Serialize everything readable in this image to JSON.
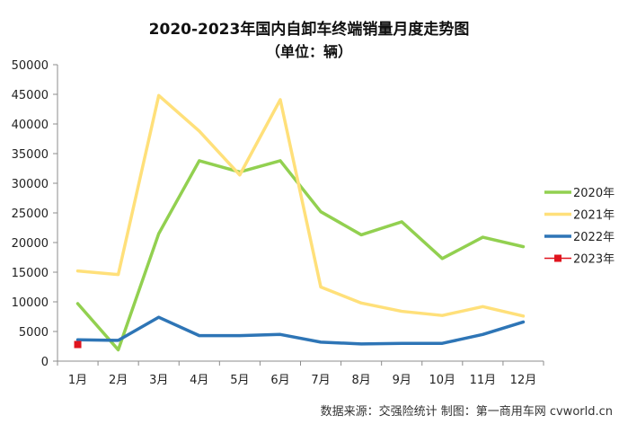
{
  "chart_data": {
    "type": "line",
    "title": "2020-2023年国内自卸车终端销量月度走势图",
    "subtitle": "（单位：辆）",
    "categories": [
      "1月",
      "2月",
      "3月",
      "4月",
      "5月",
      "6月",
      "7月",
      "8月",
      "9月",
      "10月",
      "11月",
      "12月"
    ],
    "series": [
      {
        "name": "2020年",
        "color": "#92d050",
        "values": [
          9700,
          1900,
          21500,
          33800,
          31900,
          33800,
          25200,
          21300,
          23500,
          17300,
          20900,
          19300
        ]
      },
      {
        "name": "2021年",
        "color": "#ffe07a",
        "values": [
          15200,
          14600,
          44800,
          38800,
          31400,
          44100,
          12500,
          9800,
          8400,
          7700,
          9200,
          7600
        ]
      },
      {
        "name": "2022年",
        "color": "#2e75b6",
        "values": [
          3600,
          3500,
          7400,
          4300,
          4300,
          4500,
          3200,
          2900,
          3000,
          3000,
          4500,
          6600
        ]
      },
      {
        "name": "2023年",
        "color": "#e0141e",
        "values": [
          2800,
          null,
          null,
          null,
          null,
          null,
          null,
          null,
          null,
          null,
          null,
          null
        ]
      }
    ],
    "yticks": [
      "0",
      "5000",
      "10000",
      "15000",
      "20000",
      "25000",
      "30000",
      "35000",
      "40000",
      "45000",
      "50000"
    ],
    "ylim": [
      0,
      50000
    ],
    "grid": false,
    "legend": "right",
    "xlabel": "",
    "ylabel": ""
  },
  "source": "数据来源：交强险统计   制图：第一商用车网 cvworld.cn"
}
